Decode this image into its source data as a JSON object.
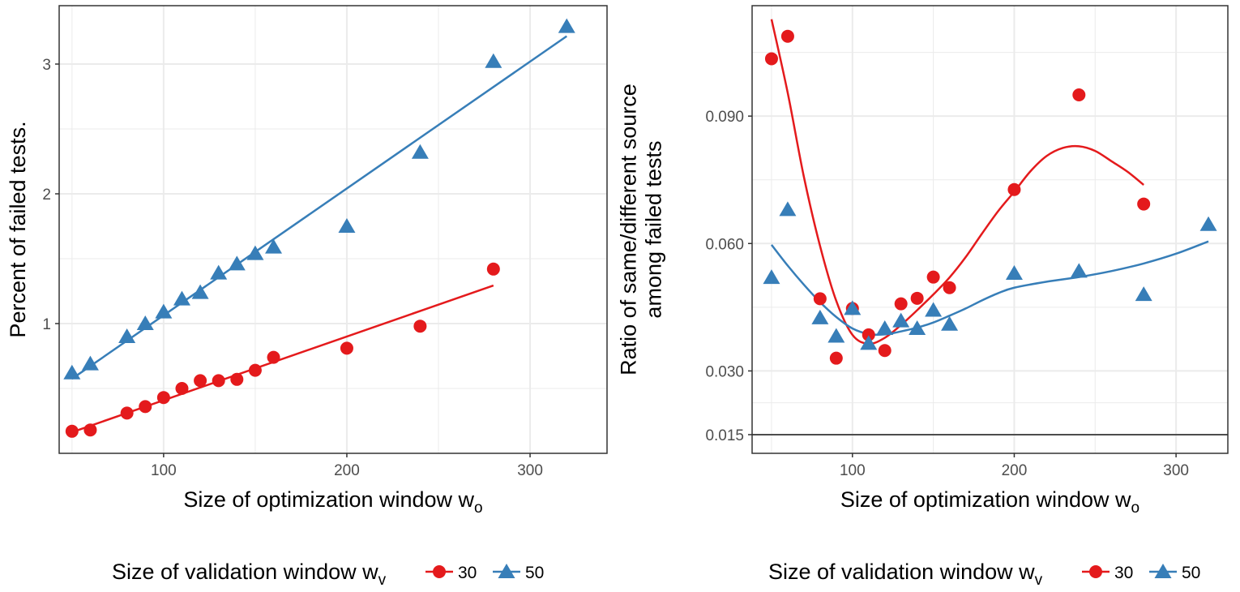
{
  "colors": {
    "s30": "#E41A1C",
    "s50": "#377EB8",
    "grid": "#EBEBEB",
    "frame": "#333333",
    "refline": "#4D4D4D"
  },
  "chart_data": [
    {
      "type": "scatter",
      "xlabel_main": "Size of optimization window  w",
      "xlabel_sub": "o",
      "ylabel": [
        "Percent of failed tests."
      ],
      "xlim": [
        43,
        342
      ],
      "ylim": [
        0.0,
        3.45
      ],
      "xticks": [
        100,
        200,
        300
      ],
      "xtick_labels": [
        "100",
        "200",
        "300"
      ],
      "yticks": [
        1,
        2,
        3
      ],
      "ytick_labels": [
        "1",
        "2",
        "3"
      ],
      "grid": true,
      "fit": "linear",
      "legend": {
        "placement": "bottom",
        "title_main": "Size of validation window  w",
        "title_sub": "v",
        "labels": [
          "30",
          "50"
        ]
      },
      "series": [
        {
          "name": "30",
          "marker": "circle",
          "x": [
            50,
            60,
            80,
            90,
            100,
            110,
            120,
            130,
            140,
            150,
            160,
            200,
            240,
            280
          ],
          "y": [
            0.17,
            0.18,
            0.31,
            0.36,
            0.43,
            0.5,
            0.56,
            0.56,
            0.57,
            0.64,
            0.74,
            0.81,
            0.98,
            1.42
          ]
        },
        {
          "name": "50",
          "marker": "triangle",
          "x": [
            50,
            60,
            80,
            90,
            100,
            110,
            120,
            130,
            140,
            150,
            160,
            200,
            240,
            280,
            320
          ],
          "y": [
            0.62,
            0.69,
            0.9,
            1.0,
            1.09,
            1.19,
            1.24,
            1.39,
            1.46,
            1.54,
            1.59,
            1.75,
            2.32,
            3.02,
            3.29
          ]
        }
      ]
    },
    {
      "type": "scatter",
      "xlabel_main": "Size of optimization window  w",
      "xlabel_sub": "o",
      "ylabel": [
        "Ratio of same/different source",
        "among failed tests"
      ],
      "xlim": [
        38,
        332
      ],
      "ylim": [
        0.0106,
        0.116
      ],
      "xticks": [
        100,
        200,
        300
      ],
      "xtick_labels": [
        "100",
        "200",
        "300"
      ],
      "yticks": [
        0.015,
        0.03,
        0.06,
        0.09
      ],
      "ytick_labels": [
        "0.015",
        "0.030",
        "0.060",
        "0.090"
      ],
      "reference_line_y": 0.015,
      "grid": true,
      "fit": "smooth",
      "legend": {
        "placement": "bottom",
        "title_main": "Size of validation window  w",
        "title_sub": "v",
        "labels": [
          "30",
          "50"
        ]
      },
      "series": [
        {
          "name": "30",
          "marker": "circle",
          "x": [
            50,
            60,
            80,
            90,
            100,
            110,
            120,
            130,
            140,
            150,
            160,
            200,
            240,
            280
          ],
          "y": [
            0.1035,
            0.1088,
            0.047,
            0.033,
            0.0447,
            0.0385,
            0.0348,
            0.0458,
            0.0471,
            0.0521,
            0.0496,
            0.0727,
            0.095,
            0.0693
          ],
          "trend": {
            "x": [
              50,
              60,
              70,
              80,
              90,
              100,
              110,
              120,
              130,
              140,
              150,
              160,
              170,
              180,
              190,
              200,
              210,
              220,
              230,
              240,
              250,
              260,
              270,
              280
            ],
            "y": [
              0.1128,
              0.0955,
              0.0757,
              0.0594,
              0.0465,
              0.0385,
              0.0364,
              0.0378,
              0.0408,
              0.0443,
              0.048,
              0.052,
              0.0568,
              0.0623,
              0.0676,
              0.0722,
              0.077,
              0.0806,
              0.0825,
              0.0829,
              0.0818,
              0.0794,
              0.0769,
              0.0738
            ]
          }
        },
        {
          "name": "50",
          "marker": "triangle",
          "x": [
            50,
            60,
            80,
            90,
            100,
            110,
            120,
            130,
            140,
            150,
            160,
            200,
            240,
            280,
            320
          ],
          "y": [
            0.052,
            0.068,
            0.0425,
            0.0382,
            0.0447,
            0.0365,
            0.04,
            0.0418,
            0.04,
            0.0443,
            0.041,
            0.053,
            0.0535,
            0.048,
            0.0645
          ],
          "trend": {
            "x": [
              50,
              60,
              70,
              80,
              90,
              100,
              110,
              120,
              130,
              140,
              150,
              160,
              170,
              180,
              190,
              200,
              220,
              240,
              260,
              280,
              300,
              320
            ],
            "y": [
              0.0597,
              0.0548,
              0.0503,
              0.0462,
              0.0427,
              0.04,
              0.0387,
              0.0386,
              0.0393,
              0.0402,
              0.0414,
              0.043,
              0.0447,
              0.0466,
              0.0483,
              0.0496,
              0.051,
              0.0521,
              0.0535,
              0.0553,
              0.0576,
              0.0605
            ]
          }
        }
      ]
    }
  ]
}
